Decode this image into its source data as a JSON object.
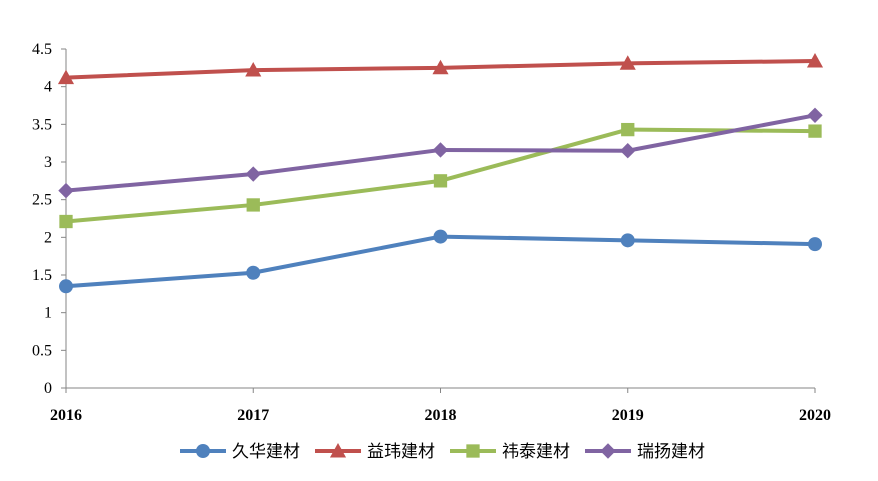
{
  "chart_data": {
    "type": "line",
    "categories": [
      "2016",
      "2017",
      "2018",
      "2019",
      "2020"
    ],
    "ylim": [
      0,
      4.5
    ],
    "yticks": [
      "0",
      "0.5",
      "1",
      "1.5",
      "2",
      "2.5",
      "3",
      "3.5",
      "4",
      "4.5"
    ],
    "grid": false,
    "legend_position": "bottom",
    "series": [
      {
        "name": "久华建材",
        "color": "#4F81BD",
        "marker": "circle",
        "values": [
          1.35,
          1.53,
          2.01,
          1.96,
          1.91
        ]
      },
      {
        "name": "益玮建材",
        "color": "#C0504D",
        "marker": "triangle",
        "values": [
          4.12,
          4.22,
          4.25,
          4.31,
          4.34
        ]
      },
      {
        "name": "祎泰建材",
        "color": "#9BBB59",
        "marker": "square",
        "values": [
          2.21,
          2.43,
          2.75,
          3.43,
          3.41
        ]
      },
      {
        "name": "瑞扬建材",
        "color": "#8064A2",
        "marker": "diamond",
        "values": [
          2.62,
          2.84,
          3.16,
          3.15,
          3.62
        ]
      }
    ]
  }
}
